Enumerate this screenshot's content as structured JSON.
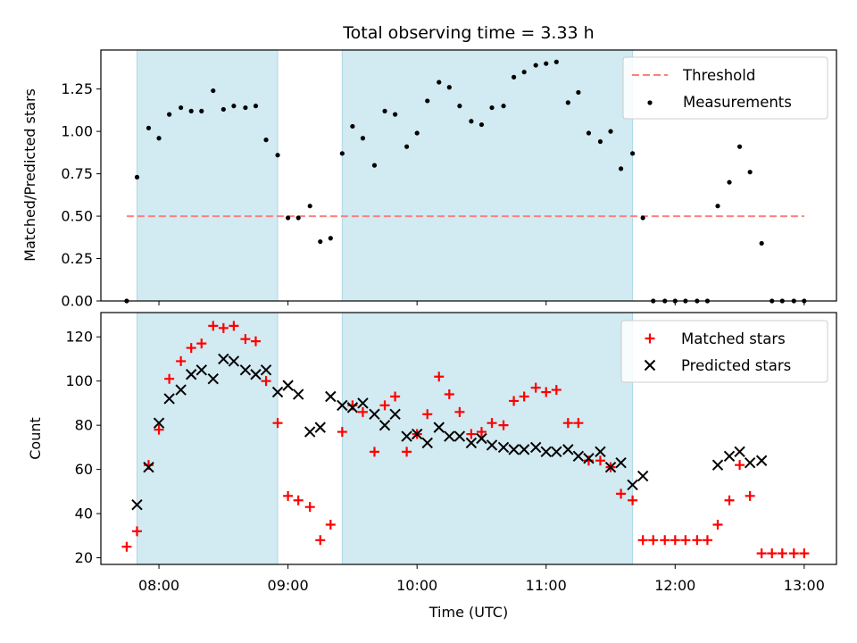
{
  "chart_data": {
    "type": "scatter",
    "title": "Total observing time = 3.33 h",
    "xlabel": "Time (UTC)",
    "x_tick_labels": [
      "08:00",
      "09:00",
      "10:00",
      "11:00",
      "12:00",
      "13:00"
    ],
    "x_tick_hours": [
      8,
      9,
      10,
      11,
      12,
      13
    ],
    "xlim_hours": [
      7.55,
      13.25
    ],
    "shaded_intervals_hours": [
      [
        7.83,
        8.92
      ],
      [
        9.42,
        11.67
      ]
    ],
    "shade_color": "#add8e6",
    "panels": [
      {
        "id": "ratio",
        "ylabel": "Matched/Predicted stars",
        "ylim": [
          0,
          1.48
        ],
        "yticks": [
          0.0,
          0.25,
          0.5,
          0.75,
          1.0,
          1.25
        ],
        "ytick_labels": [
          "0.00",
          "0.25",
          "0.50",
          "0.75",
          "1.00",
          "1.25"
        ],
        "threshold": {
          "name": "Threshold",
          "value": 0.5,
          "x_range_hours": [
            7.75,
            13.0
          ],
          "color": "#ff7f7f"
        },
        "series": [
          {
            "name": "Measurements",
            "marker": "dot",
            "color": "#000000",
            "points": [
              [
                7.75,
                0.0
              ],
              [
                7.83,
                0.73
              ],
              [
                7.92,
                1.02
              ],
              [
                8.0,
                0.96
              ],
              [
                8.08,
                1.1
              ],
              [
                8.17,
                1.14
              ],
              [
                8.25,
                1.12
              ],
              [
                8.33,
                1.12
              ],
              [
                8.42,
                1.24
              ],
              [
                8.5,
                1.13
              ],
              [
                8.58,
                1.15
              ],
              [
                8.67,
                1.14
              ],
              [
                8.75,
                1.15
              ],
              [
                8.83,
                0.95
              ],
              [
                8.92,
                0.86
              ],
              [
                9.0,
                0.49
              ],
              [
                9.08,
                0.49
              ],
              [
                9.17,
                0.56
              ],
              [
                9.25,
                0.35
              ],
              [
                9.33,
                0.37
              ],
              [
                9.42,
                0.87
              ],
              [
                9.5,
                1.03
              ],
              [
                9.58,
                0.96
              ],
              [
                9.67,
                0.8
              ],
              [
                9.75,
                1.12
              ],
              [
                9.83,
                1.1
              ],
              [
                9.92,
                0.91
              ],
              [
                10.0,
                0.99
              ],
              [
                10.08,
                1.18
              ],
              [
                10.17,
                1.29
              ],
              [
                10.25,
                1.26
              ],
              [
                10.33,
                1.15
              ],
              [
                10.42,
                1.06
              ],
              [
                10.5,
                1.04
              ],
              [
                10.58,
                1.14
              ],
              [
                10.67,
                1.15
              ],
              [
                10.75,
                1.32
              ],
              [
                10.83,
                1.35
              ],
              [
                10.92,
                1.39
              ],
              [
                11.0,
                1.4
              ],
              [
                11.08,
                1.41
              ],
              [
                11.17,
                1.17
              ],
              [
                11.25,
                1.23
              ],
              [
                11.33,
                0.99
              ],
              [
                11.42,
                0.94
              ],
              [
                11.5,
                1.0
              ],
              [
                11.58,
                0.78
              ],
              [
                11.67,
                0.87
              ],
              [
                11.75,
                0.49
              ],
              [
                11.83,
                0.0
              ],
              [
                11.92,
                0.0
              ],
              [
                12.0,
                0.0
              ],
              [
                12.08,
                0.0
              ],
              [
                12.17,
                0.0
              ],
              [
                12.25,
                0.0
              ],
              [
                12.33,
                0.56
              ],
              [
                12.42,
                0.7
              ],
              [
                12.5,
                0.91
              ],
              [
                12.58,
                0.76
              ],
              [
                12.67,
                0.34
              ],
              [
                12.75,
                0.0
              ],
              [
                12.83,
                0.0
              ],
              [
                12.92,
                0.0
              ],
              [
                13.0,
                0.0
              ]
            ]
          }
        ],
        "legend_position": "top-right"
      },
      {
        "id": "count",
        "ylabel": "Count",
        "ylim": [
          17,
          131
        ],
        "yticks": [
          20,
          40,
          60,
          80,
          100,
          120
        ],
        "ytick_labels": [
          "20",
          "40",
          "60",
          "80",
          "100",
          "120"
        ],
        "series": [
          {
            "name": "Matched stars",
            "marker": "plus",
            "color": "#ff0000",
            "points": [
              [
                7.75,
                25
              ],
              [
                7.83,
                32
              ],
              [
                7.92,
                62
              ],
              [
                8.0,
                78
              ],
              [
                8.08,
                101
              ],
              [
                8.17,
                109
              ],
              [
                8.25,
                115
              ],
              [
                8.33,
                117
              ],
              [
                8.42,
                125
              ],
              [
                8.5,
                124
              ],
              [
                8.58,
                125
              ],
              [
                8.67,
                119
              ],
              [
                8.75,
                118
              ],
              [
                8.83,
                100
              ],
              [
                8.92,
                81
              ],
              [
                9.0,
                48
              ],
              [
                9.08,
                46
              ],
              [
                9.17,
                43
              ],
              [
                9.25,
                28
              ],
              [
                9.33,
                35
              ],
              [
                9.42,
                77
              ],
              [
                9.5,
                89
              ],
              [
                9.58,
                86
              ],
              [
                9.67,
                68
              ],
              [
                9.75,
                89
              ],
              [
                9.83,
                93
              ],
              [
                9.92,
                68
              ],
              [
                10.0,
                76
              ],
              [
                10.08,
                85
              ],
              [
                10.17,
                102
              ],
              [
                10.25,
                94
              ],
              [
                10.33,
                86
              ],
              [
                10.42,
                76
              ],
              [
                10.5,
                77
              ],
              [
                10.58,
                81
              ],
              [
                10.67,
                80
              ],
              [
                10.75,
                91
              ],
              [
                10.83,
                93
              ],
              [
                10.92,
                97
              ],
              [
                11.0,
                95
              ],
              [
                11.08,
                96
              ],
              [
                11.17,
                81
              ],
              [
                11.25,
                81
              ],
              [
                11.33,
                64
              ],
              [
                11.42,
                64
              ],
              [
                11.5,
                61
              ],
              [
                11.58,
                49
              ],
              [
                11.67,
                46
              ],
              [
                11.75,
                28
              ],
              [
                11.83,
                28
              ],
              [
                11.92,
                28
              ],
              [
                12.0,
                28
              ],
              [
                12.08,
                28
              ],
              [
                12.17,
                28
              ],
              [
                12.25,
                28
              ],
              [
                12.33,
                35
              ],
              [
                12.42,
                46
              ],
              [
                12.5,
                62
              ],
              [
                12.58,
                48
              ],
              [
                12.67,
                22
              ],
              [
                12.75,
                22
              ],
              [
                12.83,
                22
              ],
              [
                12.92,
                22
              ],
              [
                13.0,
                22
              ]
            ]
          },
          {
            "name": "Predicted stars",
            "marker": "x",
            "color": "#000000",
            "points": [
              [
                7.83,
                44
              ],
              [
                7.92,
                61
              ],
              [
                8.0,
                81
              ],
              [
                8.08,
                92
              ],
              [
                8.17,
                96
              ],
              [
                8.25,
                103
              ],
              [
                8.33,
                105
              ],
              [
                8.42,
                101
              ],
              [
                8.5,
                110
              ],
              [
                8.58,
                109
              ],
              [
                8.67,
                105
              ],
              [
                8.75,
                103
              ],
              [
                8.83,
                105
              ],
              [
                8.92,
                95
              ],
              [
                9.0,
                98
              ],
              [
                9.08,
                94
              ],
              [
                9.17,
                77
              ],
              [
                9.25,
                79
              ],
              [
                9.33,
                93
              ],
              [
                9.42,
                89
              ],
              [
                9.5,
                88
              ],
              [
                9.58,
                90
              ],
              [
                9.67,
                85
              ],
              [
                9.75,
                80
              ],
              [
                9.83,
                85
              ],
              [
                9.92,
                75
              ],
              [
                10.0,
                76
              ],
              [
                10.08,
                72
              ],
              [
                10.17,
                79
              ],
              [
                10.25,
                75
              ],
              [
                10.33,
                75
              ],
              [
                10.42,
                72
              ],
              [
                10.5,
                74
              ],
              [
                10.58,
                71
              ],
              [
                10.67,
                70
              ],
              [
                10.75,
                69
              ],
              [
                10.83,
                69
              ],
              [
                10.92,
                70
              ],
              [
                11.0,
                68
              ],
              [
                11.08,
                68
              ],
              [
                11.17,
                69
              ],
              [
                11.25,
                66
              ],
              [
                11.33,
                65
              ],
              [
                11.42,
                68
              ],
              [
                11.5,
                61
              ],
              [
                11.58,
                63
              ],
              [
                11.67,
                53
              ],
              [
                11.75,
                57
              ],
              [
                12.33,
                62
              ],
              [
                12.42,
                66
              ],
              [
                12.5,
                68
              ],
              [
                12.58,
                63
              ],
              [
                12.67,
                64
              ]
            ]
          }
        ],
        "legend_position": "top-right"
      }
    ]
  }
}
